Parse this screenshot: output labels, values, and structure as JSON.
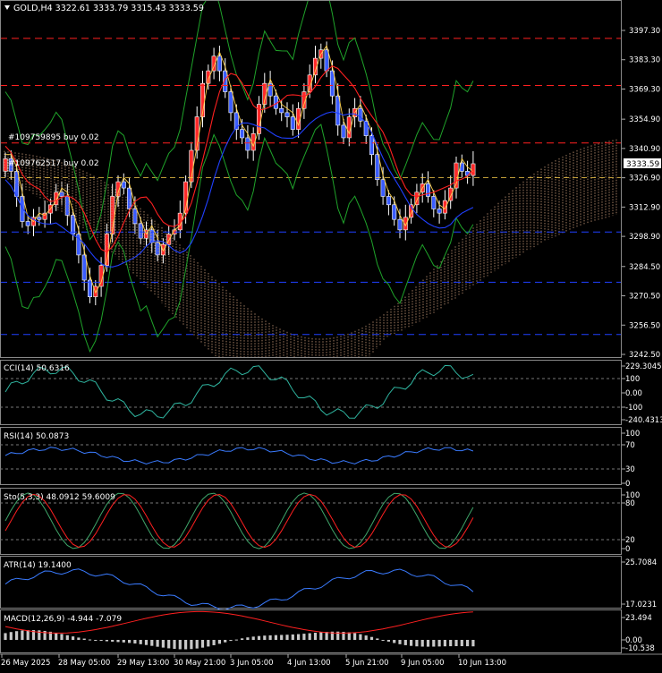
{
  "symbol_header": "GOLD,H4  3322.61 3333.79 3315.43 3333.59",
  "price_axis_labels": [
    "3397.30",
    "3383.30",
    "3369.30",
    "3354.90",
    "3340.90",
    "3326.90",
    "3312.90",
    "3298.90",
    "3284.50",
    "3270.50",
    "3256.50",
    "3242.50"
  ],
  "current_price": "3333.59",
  "orders": [
    {
      "label": "#109759895 buy 0.02",
      "price": 3343.5
    },
    {
      "label": "#109762517 buy 0.02",
      "price": 3333.3
    }
  ],
  "time_labels": [
    "26 May 2025",
    "28 May 05:00",
    "29 May 13:00",
    "30 May 21:00",
    "3 Jun 05:00",
    "4 Jun 13:00",
    "5 Jun 21:00",
    "9 Jun 05:00",
    "10 Jun 13:00"
  ],
  "indicators": {
    "cci": {
      "title": "CCI(14) 50.6316",
      "axis": [
        "229.3045",
        "100",
        "0.00",
        "-100",
        "-240.4313"
      ]
    },
    "rsi": {
      "title": "RSI(14) 50.0873",
      "axis": [
        "100",
        "70",
        "30",
        "0"
      ]
    },
    "sto": {
      "title": "Sto(5,3,3) 48.0912 59.6009",
      "axis": [
        "100",
        "80",
        "20",
        "0"
      ]
    },
    "atr": {
      "title": "ATR(14) 19.1400",
      "axis": [
        "25.7084",
        "17.0231"
      ]
    },
    "macd": {
      "title": "MACD(12,26,9) -4.944 -7.079",
      "axis": [
        "23.494",
        "0.00",
        "-10.538"
      ]
    }
  },
  "colors": {
    "bull": "#ff2a2a",
    "bear": "#3a5cff",
    "grid": "#777777",
    "red_level": "#ff2020",
    "blue_level": "#2040ff",
    "green": "#1fa32a",
    "tenkan": "#ffd24a",
    "cloud": "#c89a7a",
    "rsi": "#3a7bff",
    "cci": "#2fb5a0",
    "sto_main": "#3fa66a",
    "sto_signal": "#ff2020",
    "macd_hist": "#c8c8c8"
  }
}
